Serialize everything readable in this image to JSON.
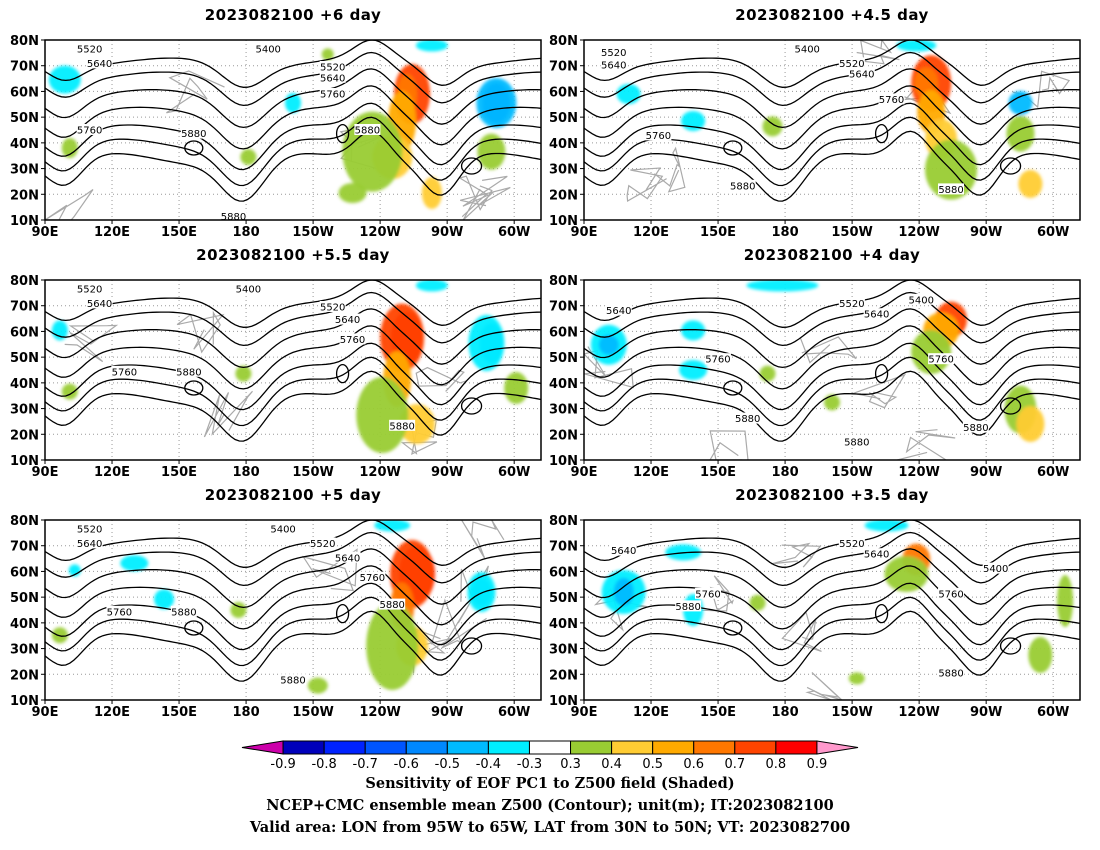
{
  "colors": {
    "neg_extreme": "#cc00aa",
    "neg": [
      "#0000bb",
      "#0022ff",
      "#0055ff",
      "#0088ff",
      "#00bbff",
      "#00eeff"
    ],
    "neutral": "#ffffff",
    "pos": [
      "#99cc33",
      "#ffcc33",
      "#ffaa00",
      "#ff7700",
      "#ff4400",
      "#ff0000"
    ],
    "pos_extreme": "#ff99cc",
    "contour": "#000000",
    "coast": "#aaaaaa"
  },
  "colorbar": {
    "labels": [
      "-0.9",
      "-0.8",
      "-0.7",
      "-0.6",
      "-0.5",
      "-0.4",
      "-0.3",
      "0.3",
      "0.4",
      "0.5",
      "0.6",
      "0.7",
      "0.8",
      "0.9"
    ]
  },
  "map_axes": {
    "lon_labels": [
      "90E",
      "120E",
      "150E",
      "180",
      "150W",
      "120W",
      "90W",
      "60W"
    ],
    "lat_labels": [
      "10N",
      "20N",
      "30N",
      "40N",
      "50N",
      "60N",
      "70N",
      "80N"
    ]
  },
  "panels": [
    {
      "id": "p1",
      "title": "2023082100 +6 day",
      "contour_labels": [
        [
          "5520",
          0.09,
          0.05
        ],
        [
          "5400",
          0.45,
          0.05
        ],
        [
          "5640",
          0.11,
          0.13
        ],
        [
          "5520",
          0.58,
          0.15
        ],
        [
          "5640",
          0.58,
          0.21
        ],
        [
          "5760",
          0.58,
          0.3
        ],
        [
          "5760",
          0.09,
          0.5
        ],
        [
          "5880",
          0.3,
          0.52
        ],
        [
          "5880",
          0.65,
          0.5
        ],
        [
          "5880",
          0.38,
          0.98
        ]
      ]
    },
    {
      "id": "p2",
      "title": "2023082100 +4.5 day",
      "contour_labels": [
        [
          "5400",
          0.45,
          0.05
        ],
        [
          "5520",
          0.06,
          0.07
        ],
        [
          "5640",
          0.06,
          0.14
        ],
        [
          "5520",
          0.54,
          0.13
        ],
        [
          "5640",
          0.56,
          0.19
        ],
        [
          "5760",
          0.62,
          0.33
        ],
        [
          "5760",
          0.15,
          0.53
        ],
        [
          "5880",
          0.32,
          0.81
        ],
        [
          "5880",
          0.74,
          0.83
        ]
      ]
    },
    {
      "id": "p3",
      "title": "2023082100 +5.5 day",
      "contour_labels": [
        [
          "5520",
          0.09,
          0.05
        ],
        [
          "5400",
          0.41,
          0.05
        ],
        [
          "5640",
          0.11,
          0.13
        ],
        [
          "5520",
          0.58,
          0.15
        ],
        [
          "5640",
          0.61,
          0.22
        ],
        [
          "5760",
          0.62,
          0.33
        ],
        [
          "5760",
          0.16,
          0.51
        ],
        [
          "5880",
          0.29,
          0.51
        ],
        [
          "5880",
          0.72,
          0.81
        ]
      ]
    },
    {
      "id": "p4",
      "title": "2023082100 +4 day",
      "contour_labels": [
        [
          "5640",
          0.07,
          0.17
        ],
        [
          "5520",
          0.54,
          0.13
        ],
        [
          "5400",
          0.68,
          0.11
        ],
        [
          "5640",
          0.59,
          0.19
        ],
        [
          "5760",
          0.27,
          0.44
        ],
        [
          "5760",
          0.72,
          0.44
        ],
        [
          "5880",
          0.33,
          0.77
        ],
        [
          "5880",
          0.55,
          0.9
        ],
        [
          "5880",
          0.79,
          0.82
        ]
      ]
    },
    {
      "id": "p5",
      "title": "2023082100 +5 day",
      "contour_labels": [
        [
          "5520",
          0.09,
          0.05
        ],
        [
          "5400",
          0.48,
          0.05
        ],
        [
          "5640",
          0.09,
          0.13
        ],
        [
          "5520",
          0.56,
          0.13
        ],
        [
          "5640",
          0.61,
          0.21
        ],
        [
          "5760",
          0.66,
          0.32
        ],
        [
          "5880",
          0.7,
          0.47
        ],
        [
          "5760",
          0.15,
          0.51
        ],
        [
          "5880",
          0.28,
          0.51
        ],
        [
          "5880",
          0.5,
          0.89
        ]
      ]
    },
    {
      "id": "p6",
      "title": "2023082100 +3.5 day",
      "contour_labels": [
        [
          "5640",
          0.08,
          0.17
        ],
        [
          "5520",
          0.54,
          0.13
        ],
        [
          "5640",
          0.59,
          0.19
        ],
        [
          "5400",
          0.83,
          0.27
        ],
        [
          "5760",
          0.25,
          0.41
        ],
        [
          "5880",
          0.21,
          0.48
        ],
        [
          "5760",
          0.74,
          0.41
        ],
        [
          "5880",
          0.74,
          0.85
        ]
      ]
    }
  ],
  "footer": {
    "line1": "Sensitivity of EOF PC1 to Z500 field (Shaded)",
    "line2": "NCEP+CMC ensemble mean Z500 (Contour); unit(m); IT:2023082100",
    "line3": "Valid area: LON from 95W to 65W, LAT from 30N to 50N; VT: 2023082700"
  }
}
